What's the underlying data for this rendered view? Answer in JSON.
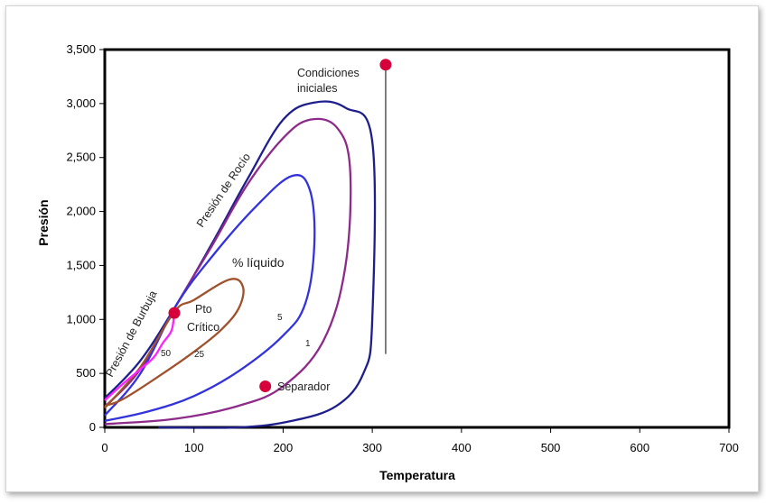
{
  "chart_data": {
    "type": "line",
    "xlabel": "Temperatura",
    "ylabel": "Presión",
    "xlim": [
      0,
      700
    ],
    "ylim": [
      0,
      3500
    ],
    "x_ticks": [
      "0",
      "100",
      "200",
      "300",
      "400",
      "500",
      "600",
      "700"
    ],
    "y_ticks": [
      "0",
      "500",
      "1,000",
      "1,500",
      "2,000",
      "2,500",
      "3,000",
      "3,500"
    ],
    "grid": false,
    "series": [
      {
        "color": "#1f1f8c",
        "points": [
          [
            0,
            270
          ],
          [
            40,
            620
          ],
          [
            80,
            1130
          ],
          [
            120,
            1700
          ],
          [
            160,
            2300
          ],
          [
            200,
            2850
          ],
          [
            235,
            3010
          ],
          [
            270,
            2960
          ],
          [
            300,
            2650
          ],
          [
            300,
            1000
          ],
          [
            290,
            500
          ],
          [
            260,
            200
          ],
          [
            210,
            60
          ],
          [
            150,
            0
          ],
          [
            60,
            0
          ]
        ]
      },
      {
        "color": "#8e2a8a",
        "points": [
          [
            0,
            190
          ],
          [
            40,
            540
          ],
          [
            80,
            1130
          ],
          [
            120,
            1680
          ],
          [
            160,
            2250
          ],
          [
            200,
            2680
          ],
          [
            230,
            2850
          ],
          [
            260,
            2780
          ],
          [
            275,
            2400
          ],
          [
            270,
            1500
          ],
          [
            245,
            800
          ],
          [
            200,
            380
          ],
          [
            150,
            200
          ],
          [
            80,
            80
          ],
          [
            0,
            30
          ]
        ]
      },
      {
        "color": "#3333dd",
        "points": [
          [
            0,
            110
          ],
          [
            40,
            500
          ],
          [
            80,
            1130
          ],
          [
            120,
            1580
          ],
          [
            170,
            2050
          ],
          [
            210,
            2330
          ],
          [
            230,
            2200
          ],
          [
            235,
            1700
          ],
          [
            225,
            1150
          ],
          [
            200,
            850
          ],
          [
            150,
            520
          ],
          [
            100,
            290
          ],
          [
            50,
            150
          ],
          [
            0,
            60
          ]
        ]
      },
      {
        "color": "#a0522d",
        "points": [
          [
            0,
            180
          ],
          [
            40,
            560
          ],
          [
            78,
            1070
          ],
          [
            100,
            1180
          ],
          [
            140,
            1370
          ],
          [
            155,
            1300
          ],
          [
            150,
            1100
          ],
          [
            130,
            900
          ],
          [
            100,
            700
          ],
          [
            60,
            470
          ],
          [
            20,
            260
          ],
          [
            0,
            200
          ]
        ]
      },
      {
        "color": "#ff22ff",
        "points": [
          [
            0,
            250
          ],
          [
            20,
            400
          ],
          [
            40,
            540
          ],
          [
            55,
            650
          ],
          [
            65,
            780
          ],
          [
            75,
            900
          ],
          [
            78,
            1070
          ]
        ]
      },
      {
        "name": "Condiciones iniciales",
        "color": "#555555",
        "points": [
          [
            315,
            3360
          ],
          [
            315,
            680
          ]
        ]
      }
    ],
    "markers": [
      {
        "label": "Condiciones iniciales",
        "x": 315,
        "y": 3360
      },
      {
        "label": "Pto Crítico",
        "x": 78,
        "y": 1060
      },
      {
        "label": "Separador",
        "x": 180,
        "y": 380
      }
    ],
    "curve_labels": [
      "Presión de Rocío",
      "Presión de Burbuja"
    ],
    "inner_labels": [
      "% líquido",
      "50",
      "25",
      "5",
      "1"
    ],
    "marker_color": "#d6003a"
  }
}
